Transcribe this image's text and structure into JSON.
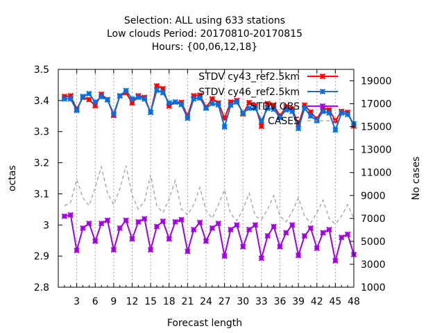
{
  "chart_data": {
    "type": "line",
    "title_lines": [
      "Selection: ALL using   633 stations",
      "Low clouds   Period: 20170810-20170815",
      "Hours: {00,06,12,18}"
    ],
    "xlabel": "Forecast length",
    "ylabel": "octas",
    "y2label": "No cases",
    "xlim": [
      0,
      48
    ],
    "ylim": [
      2.8,
      3.5
    ],
    "y2lim": [
      1000,
      20000
    ],
    "xticks": [
      3,
      6,
      9,
      12,
      15,
      18,
      21,
      24,
      27,
      30,
      33,
      36,
      39,
      42,
      45,
      48
    ],
    "yticks": [
      2.8,
      2.9,
      3,
      3.1,
      3.2,
      3.3,
      3.4,
      3.5
    ],
    "y2ticks": [
      1000,
      3000,
      5000,
      7000,
      9000,
      11000,
      13000,
      15000,
      17000,
      19000
    ],
    "legend_position": "top-right",
    "x": [
      1,
      2,
      3,
      4,
      5,
      6,
      7,
      8,
      9,
      10,
      11,
      12,
      13,
      14,
      15,
      16,
      17,
      18,
      19,
      20,
      21,
      22,
      23,
      24,
      25,
      26,
      27,
      28,
      29,
      30,
      31,
      32,
      33,
      34,
      35,
      36,
      37,
      38,
      39,
      40,
      41,
      42,
      43,
      44,
      45,
      46,
      47,
      48
    ],
    "series": [
      {
        "name": "STDV cy43_ref2.5km",
        "color": "#ff0000",
        "axis": "y",
        "values": [
          3.413,
          3.415,
          3.372,
          3.41,
          3.403,
          3.383,
          3.42,
          3.403,
          3.352,
          3.415,
          3.425,
          3.392,
          3.415,
          3.41,
          3.362,
          3.447,
          3.438,
          3.382,
          3.395,
          3.394,
          3.35,
          3.415,
          3.417,
          3.378,
          3.405,
          3.392,
          3.343,
          3.395,
          3.4,
          3.357,
          3.393,
          3.383,
          3.317,
          3.39,
          3.385,
          3.35,
          3.38,
          3.373,
          3.322,
          3.385,
          3.363,
          3.34,
          3.375,
          3.37,
          3.335,
          3.365,
          3.362,
          3.318
        ]
      },
      {
        "name": "STDV cy46_ref2.5km",
        "color": "#0070e0",
        "axis": "y",
        "values": [
          3.405,
          3.405,
          3.368,
          3.413,
          3.422,
          3.395,
          3.412,
          3.402,
          3.357,
          3.415,
          3.432,
          3.405,
          3.41,
          3.405,
          3.362,
          3.433,
          3.425,
          3.392,
          3.395,
          3.387,
          3.343,
          3.405,
          3.408,
          3.375,
          3.39,
          3.386,
          3.315,
          3.385,
          3.395,
          3.36,
          3.375,
          3.375,
          3.335,
          3.375,
          3.372,
          3.345,
          3.37,
          3.365,
          3.31,
          3.375,
          3.35,
          3.335,
          3.365,
          3.36,
          3.305,
          3.36,
          3.355,
          3.325
        ]
      },
      {
        "name": "STDV OBS",
        "color": "#a000e0",
        "axis": "y",
        "values": [
          3.028,
          3.032,
          2.918,
          2.99,
          3.005,
          2.948,
          3.005,
          3.015,
          2.92,
          2.99,
          3.015,
          2.955,
          3.01,
          3.02,
          2.92,
          2.995,
          3.012,
          2.955,
          3.01,
          3.017,
          2.915,
          2.985,
          3.008,
          2.948,
          2.99,
          3.005,
          2.9,
          2.985,
          3.0,
          2.93,
          2.985,
          3.0,
          2.893,
          2.965,
          2.995,
          2.93,
          2.975,
          3.0,
          2.902,
          2.965,
          2.99,
          2.925,
          2.975,
          2.985,
          2.885,
          2.96,
          2.97,
          2.905
        ]
      },
      {
        "name": "CASES",
        "color": "#a0a0a0",
        "axis": "y2",
        "values": [
          8100,
          8400,
          10400,
          8800,
          8100,
          9700,
          11500,
          9200,
          8200,
          9600,
          11600,
          9000,
          7800,
          8500,
          10800,
          8100,
          7500,
          8700,
          10300,
          7800,
          7300,
          8200,
          9700,
          7700,
          7000,
          8200,
          9500,
          7400,
          6800,
          7800,
          9200,
          7200,
          6900,
          7800,
          9000,
          7200,
          6700,
          7600,
          8800,
          7200,
          6600,
          7500,
          8600,
          7000,
          6500,
          7200,
          8200,
          7000
        ]
      }
    ]
  }
}
